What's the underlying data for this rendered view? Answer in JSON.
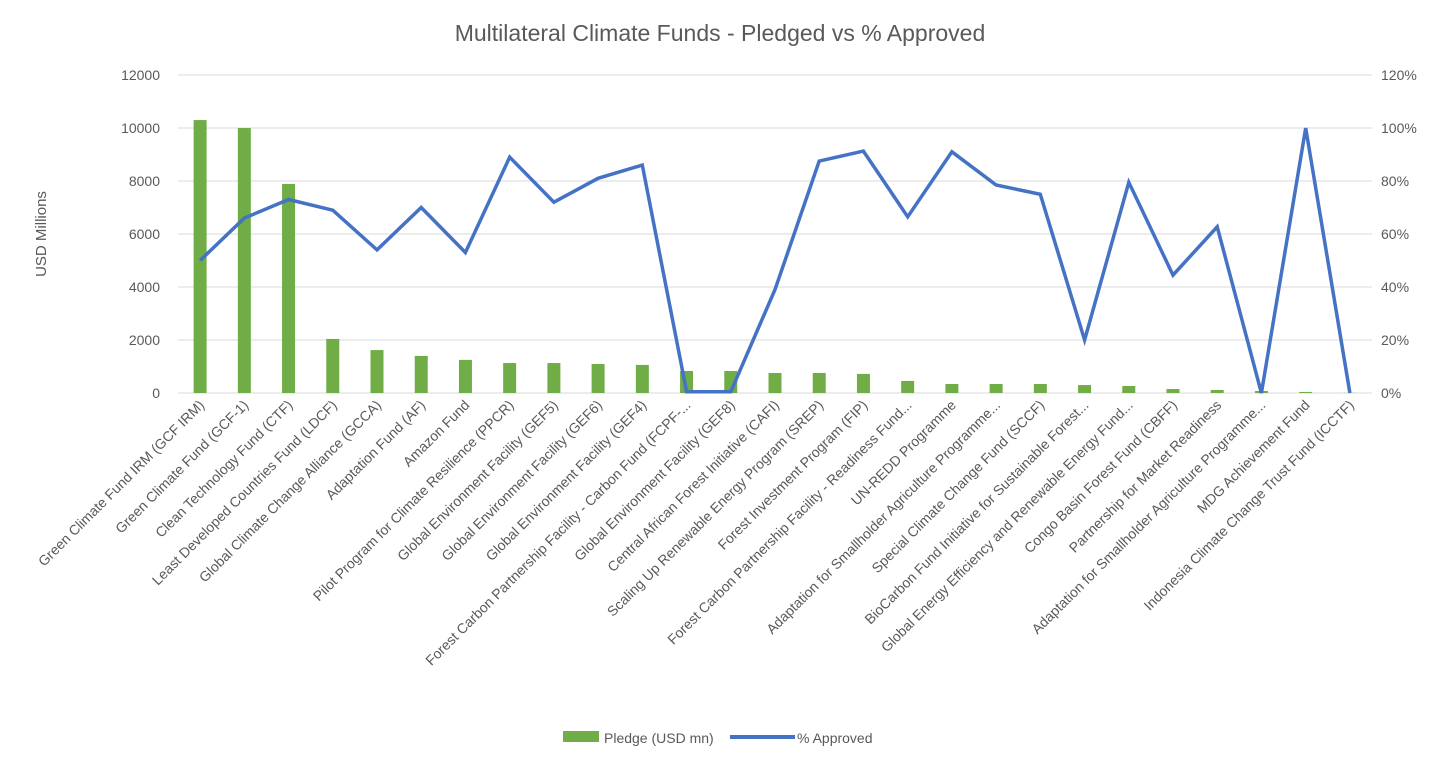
{
  "chart_data": {
    "type": "bar+line",
    "title": "Multilateral Climate Funds - Pledged vs % Approved",
    "ylabel": "USD Millions",
    "ylabel_right": "",
    "xlabel": "",
    "ylim": [
      0,
      12000
    ],
    "ylim_right": [
      0,
      1.2
    ],
    "yticks": [
      "0",
      "2000",
      "4000",
      "6000",
      "8000",
      "10000",
      "12000"
    ],
    "yticks_right": [
      "0%",
      "20%",
      "40%",
      "60%",
      "80%",
      "100%",
      "120%"
    ],
    "grid": true,
    "legend_position": "bottom",
    "colors": {
      "bar": "#70AD47",
      "line": "#4472C4",
      "grid": "#D9D9D9",
      "text": "#595959"
    },
    "categories": [
      "Green Climate Fund IRM (GCF IRM)",
      "Green Climate Fund (GCF-1)",
      "Clean Technology Fund (CTF)",
      "Least Developed Countries Fund (LDCF)",
      "Global Climate Change Alliance (GCCA)",
      "Adaptation Fund (AF)",
      "Amazon Fund",
      "Pilot Program for Climate Resilience (PPCR)",
      "Global Environment Facility (GEF5)",
      "Global Environment Facility (GEF6)",
      "Global Environment Facility (GEF4)",
      "Forest Carbon Partnership Facility - Carbon Fund (FCPF-...",
      "Global Environment Facility (GEF8)",
      "Central African Forest Initiative (CAFI)",
      "Scaling Up Renewable Energy Program (SREP)",
      "Forest Investment Program (FIP)",
      "Forest Carbon Partnership Facility - Readiness Fund...",
      "UN-REDD Programme",
      "Adaptation for Smallholder Agriculture Programme...",
      "Special Climate Change Fund (SCCF)",
      "BioCarbon Fund Initiative for Sustainable Forest...",
      "Global Energy Efficiency and Renewable Energy Fund...",
      "Congo Basin Forest Fund (CBFF)",
      "Partnership for Market Readiness",
      "Adaptation for Smallholder Agriculture Programme...",
      "MDG Achievement Fund",
      "Indonesia Climate Change Trust Fund (ICCTF)"
    ],
    "series": [
      {
        "name": "Pledge (USD mn)",
        "type": "bar",
        "axis": "left",
        "values": [
          10300,
          10000,
          7890,
          2040,
          1620,
          1400,
          1250,
          1130,
          1130,
          1095,
          1060,
          830,
          830,
          755,
          755,
          720,
          455,
          340,
          340,
          340,
          300,
          265,
          150,
          115,
          75,
          40,
          5
        ]
      },
      {
        "name": "% Approved",
        "type": "line",
        "axis": "right",
        "values": [
          0.5,
          0.66,
          0.73,
          0.69,
          0.54,
          0.7,
          0.53,
          0.89,
          0.72,
          0.81,
          0.86,
          0.005,
          0.005,
          0.39,
          0.875,
          0.913,
          0.665,
          0.91,
          0.785,
          0.75,
          0.2,
          0.795,
          0.445,
          0.627,
          0.0,
          1.0,
          0.0
        ]
      }
    ]
  }
}
